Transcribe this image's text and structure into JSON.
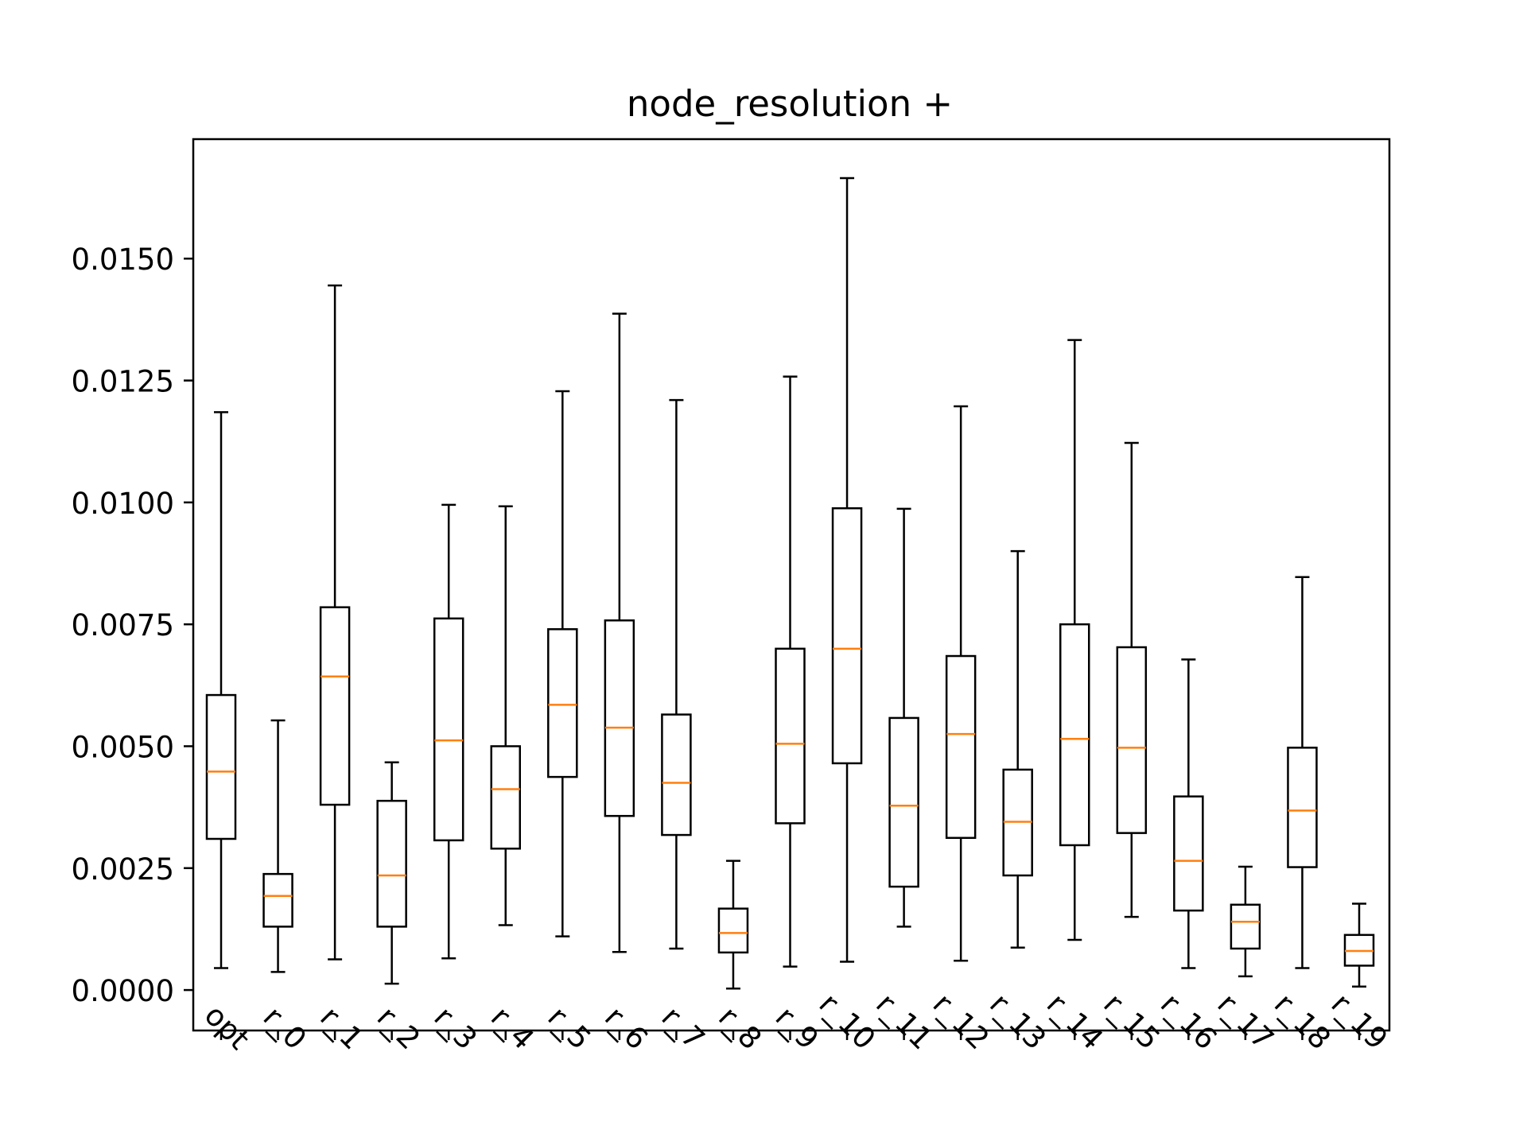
{
  "chart_data": {
    "type": "box",
    "title": "node_resolution +",
    "xlabel": "",
    "ylabel": "",
    "ylim": [
      -0.00083,
      0.01745
    ],
    "yticks": [
      {
        "value": 0.0,
        "label": "0.0000"
      },
      {
        "value": 0.0025,
        "label": "0.0025"
      },
      {
        "value": 0.005,
        "label": "0.0050"
      },
      {
        "value": 0.0075,
        "label": "0.0075"
      },
      {
        "value": 0.01,
        "label": "0.0100"
      },
      {
        "value": 0.0125,
        "label": "0.0125"
      },
      {
        "value": 0.015,
        "label": "0.0150"
      }
    ],
    "categories": [
      "opt",
      "r_0",
      "r_1",
      "r_2",
      "r_3",
      "r_4",
      "r_5",
      "r_6",
      "r_7",
      "r_8",
      "r_9",
      "r_10",
      "r_11",
      "r_12",
      "r_13",
      "r_14",
      "r_15",
      "r_16",
      "r_17",
      "r_18",
      "r_19"
    ],
    "boxes": [
      {
        "whislo": 0.00045,
        "q1": 0.0031,
        "med": 0.00448,
        "q3": 0.00605,
        "whishi": 0.01185
      },
      {
        "whislo": 0.00037,
        "q1": 0.0013,
        "med": 0.00193,
        "q3": 0.00238,
        "whishi": 0.00553
      },
      {
        "whislo": 0.00063,
        "q1": 0.0038,
        "med": 0.00643,
        "q3": 0.00785,
        "whishi": 0.01445
      },
      {
        "whislo": 0.00013,
        "q1": 0.0013,
        "med": 0.00235,
        "q3": 0.00388,
        "whishi": 0.00467
      },
      {
        "whislo": 0.00065,
        "q1": 0.00307,
        "med": 0.00512,
        "q3": 0.00762,
        "whishi": 0.00995
      },
      {
        "whislo": 0.00133,
        "q1": 0.0029,
        "med": 0.00412,
        "q3": 0.005,
        "whishi": 0.00992
      },
      {
        "whislo": 0.0011,
        "q1": 0.00437,
        "med": 0.00585,
        "q3": 0.0074,
        "whishi": 0.01228
      },
      {
        "whislo": 0.00078,
        "q1": 0.00357,
        "med": 0.00538,
        "q3": 0.00758,
        "whishi": 0.01387
      },
      {
        "whislo": 0.00085,
        "q1": 0.00318,
        "med": 0.00425,
        "q3": 0.00565,
        "whishi": 0.0121
      },
      {
        "whislo": 3e-05,
        "q1": 0.00077,
        "med": 0.00117,
        "q3": 0.00167,
        "whishi": 0.00265
      },
      {
        "whislo": 0.00048,
        "q1": 0.00342,
        "med": 0.00505,
        "q3": 0.007,
        "whishi": 0.01258
      },
      {
        "whislo": 0.00058,
        "q1": 0.00465,
        "med": 0.007,
        "q3": 0.00988,
        "whishi": 0.01665
      },
      {
        "whislo": 0.0013,
        "q1": 0.00212,
        "med": 0.00378,
        "q3": 0.00558,
        "whishi": 0.00987
      },
      {
        "whislo": 0.0006,
        "q1": 0.00312,
        "med": 0.00525,
        "q3": 0.00685,
        "whishi": 0.01197
      },
      {
        "whislo": 0.00087,
        "q1": 0.00235,
        "med": 0.00345,
        "q3": 0.00452,
        "whishi": 0.009
      },
      {
        "whislo": 0.00103,
        "q1": 0.00297,
        "med": 0.00515,
        "q3": 0.0075,
        "whishi": 0.01333
      },
      {
        "whislo": 0.0015,
        "q1": 0.00322,
        "med": 0.00497,
        "q3": 0.00703,
        "whishi": 0.01122
      },
      {
        "whislo": 0.00045,
        "q1": 0.00163,
        "med": 0.00265,
        "q3": 0.00397,
        "whishi": 0.00678
      },
      {
        "whislo": 0.00028,
        "q1": 0.00085,
        "med": 0.0014,
        "q3": 0.00175,
        "whishi": 0.00253
      },
      {
        "whislo": 0.00045,
        "q1": 0.00252,
        "med": 0.00368,
        "q3": 0.00497,
        "whishi": 0.00847
      },
      {
        "whislo": 7e-05,
        "q1": 0.0005,
        "med": 0.0008,
        "q3": 0.00113,
        "whishi": 0.00177
      }
    ],
    "box_color": "#000000",
    "median_color": "#ff7f0e",
    "grid": false,
    "legend": "none"
  }
}
